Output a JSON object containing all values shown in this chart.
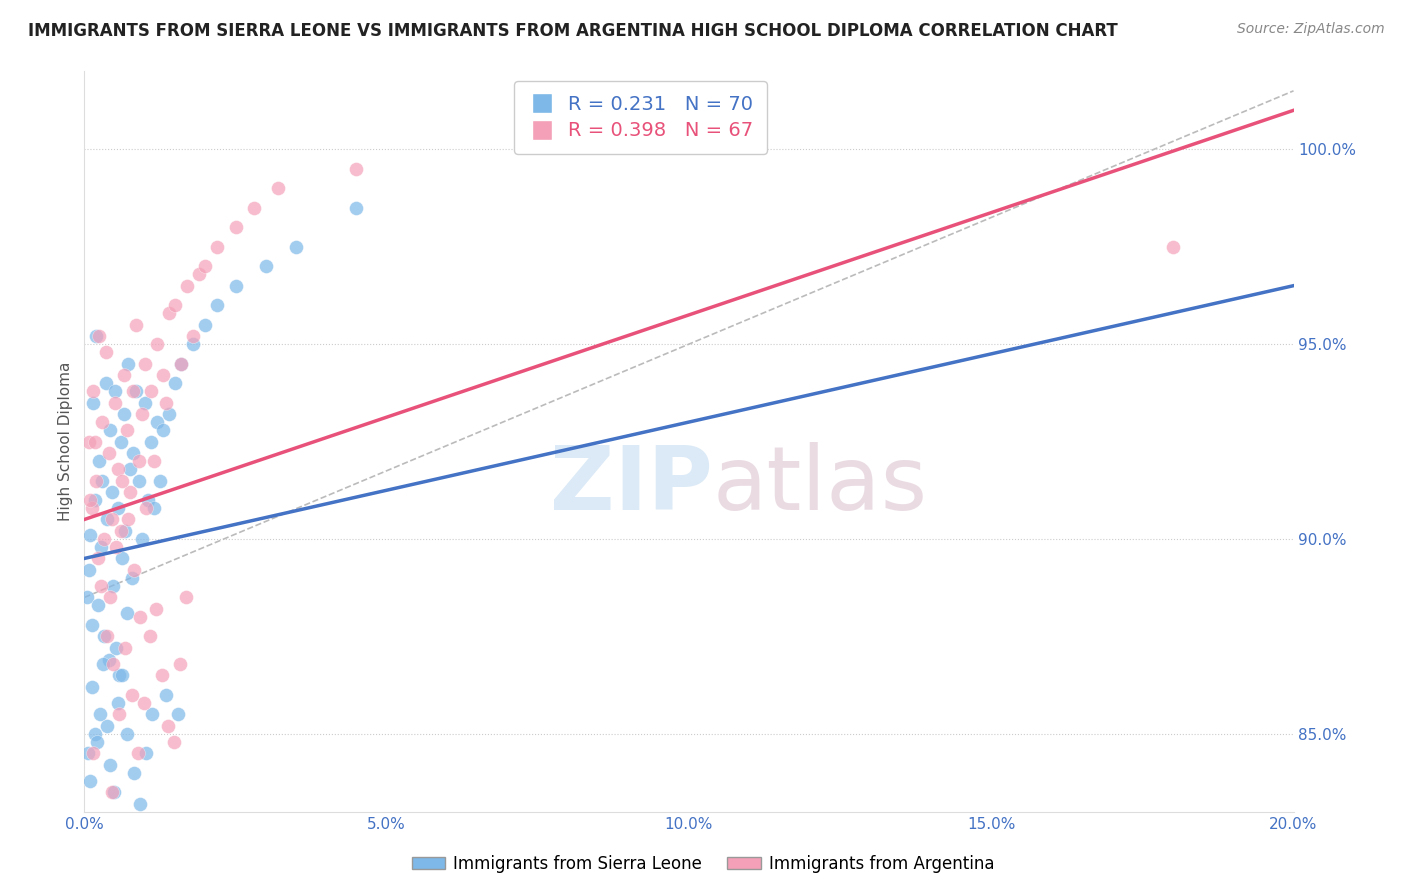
{
  "title": "IMMIGRANTS FROM SIERRA LEONE VS IMMIGRANTS FROM ARGENTINA HIGH SCHOOL DIPLOMA CORRELATION CHART",
  "source": "Source: ZipAtlas.com",
  "ylabel": "High School Diploma",
  "x_min": 0.0,
  "x_max": 20.0,
  "y_min": 83.0,
  "y_max": 102.0,
  "y_ticks": [
    85.0,
    90.0,
    95.0,
    100.0
  ],
  "x_ticks": [
    0.0,
    5.0,
    10.0,
    15.0,
    20.0
  ],
  "legend_r1": "R = 0.231",
  "legend_n1": "N = 70",
  "legend_r2": "R = 0.398",
  "legend_n2": "N = 67",
  "color_sierra": "#7db8e8",
  "color_argentina": "#f4a0b8",
  "color_line_sierra": "#4472c4",
  "color_line_argentina": "#e8527a",
  "color_dashed": "#bbbbbb",
  "watermark_zip": "ZIP",
  "watermark_atlas": "atlas",
  "legend_label1": "Immigrants from Sierra Leone",
  "legend_label2": "Immigrants from Argentina",
  "sl_x": [
    0.05,
    0.08,
    0.1,
    0.12,
    0.15,
    0.18,
    0.2,
    0.22,
    0.25,
    0.28,
    0.3,
    0.32,
    0.35,
    0.38,
    0.4,
    0.42,
    0.45,
    0.48,
    0.5,
    0.52,
    0.55,
    0.58,
    0.6,
    0.62,
    0.65,
    0.68,
    0.7,
    0.72,
    0.75,
    0.78,
    0.8,
    0.85,
    0.9,
    0.95,
    1.0,
    1.05,
    1.1,
    1.15,
    1.2,
    1.25,
    1.3,
    1.4,
    1.5,
    1.6,
    1.8,
    2.0,
    2.2,
    2.5,
    3.0,
    3.5,
    0.06,
    0.09,
    0.13,
    0.17,
    0.21,
    0.26,
    0.31,
    0.37,
    0.43,
    0.49,
    0.56,
    0.63,
    0.71,
    0.82,
    0.92,
    1.02,
    1.12,
    1.35,
    1.55,
    4.5
  ],
  "sl_y": [
    88.5,
    89.2,
    90.1,
    87.8,
    93.5,
    91.0,
    95.2,
    88.3,
    92.0,
    89.8,
    91.5,
    87.5,
    94.0,
    90.5,
    86.9,
    92.8,
    91.2,
    88.8,
    93.8,
    87.2,
    90.8,
    86.5,
    92.5,
    89.5,
    93.2,
    90.2,
    88.1,
    94.5,
    91.8,
    89.0,
    92.2,
    93.8,
    91.5,
    90.0,
    93.5,
    91.0,
    92.5,
    90.8,
    93.0,
    91.5,
    92.8,
    93.2,
    94.0,
    94.5,
    95.0,
    95.5,
    96.0,
    96.5,
    97.0,
    97.5,
    84.5,
    83.8,
    86.2,
    85.0,
    84.8,
    85.5,
    86.8,
    85.2,
    84.2,
    83.5,
    85.8,
    86.5,
    85.0,
    84.0,
    83.2,
    84.5,
    85.5,
    86.0,
    85.5,
    98.5
  ],
  "ar_x": [
    0.08,
    0.12,
    0.15,
    0.2,
    0.25,
    0.3,
    0.35,
    0.4,
    0.45,
    0.5,
    0.55,
    0.6,
    0.65,
    0.7,
    0.75,
    0.8,
    0.85,
    0.9,
    0.95,
    1.0,
    1.1,
    1.2,
    1.3,
    1.4,
    1.5,
    1.6,
    1.7,
    1.8,
    1.9,
    2.0,
    2.2,
    2.5,
    2.8,
    3.2,
    0.22,
    0.28,
    0.38,
    0.48,
    0.58,
    0.68,
    0.78,
    0.88,
    0.98,
    1.08,
    1.18,
    1.28,
    1.38,
    1.48,
    1.58,
    1.68,
    0.1,
    0.18,
    0.32,
    0.42,
    0.52,
    0.62,
    0.72,
    0.82,
    0.92,
    1.02,
    1.15,
    1.35,
    4.5,
    8.5,
    18.0,
    0.15,
    0.45
  ],
  "ar_y": [
    92.5,
    90.8,
    93.8,
    91.5,
    95.2,
    93.0,
    94.8,
    92.2,
    90.5,
    93.5,
    91.8,
    90.2,
    94.2,
    92.8,
    91.2,
    93.8,
    95.5,
    92.0,
    93.2,
    94.5,
    93.8,
    95.0,
    94.2,
    95.8,
    96.0,
    94.5,
    96.5,
    95.2,
    96.8,
    97.0,
    97.5,
    98.0,
    98.5,
    99.0,
    89.5,
    88.8,
    87.5,
    86.8,
    85.5,
    87.2,
    86.0,
    84.5,
    85.8,
    87.5,
    88.2,
    86.5,
    85.2,
    84.8,
    86.8,
    88.5,
    91.0,
    92.5,
    90.0,
    88.5,
    89.8,
    91.5,
    90.5,
    89.2,
    88.0,
    90.8,
    92.0,
    93.5,
    99.5,
    100.5,
    97.5,
    84.5,
    83.5
  ],
  "trendline_sl_x0": 0.0,
  "trendline_sl_x1": 20.0,
  "trendline_sl_y0": 89.5,
  "trendline_sl_y1": 96.5,
  "trendline_ar_x0": 0.0,
  "trendline_ar_x1": 20.0,
  "trendline_ar_y0": 90.5,
  "trendline_ar_y1": 101.0,
  "dash_x0": 0.0,
  "dash_x1": 20.0,
  "dash_y0": 88.5,
  "dash_y1": 101.5
}
